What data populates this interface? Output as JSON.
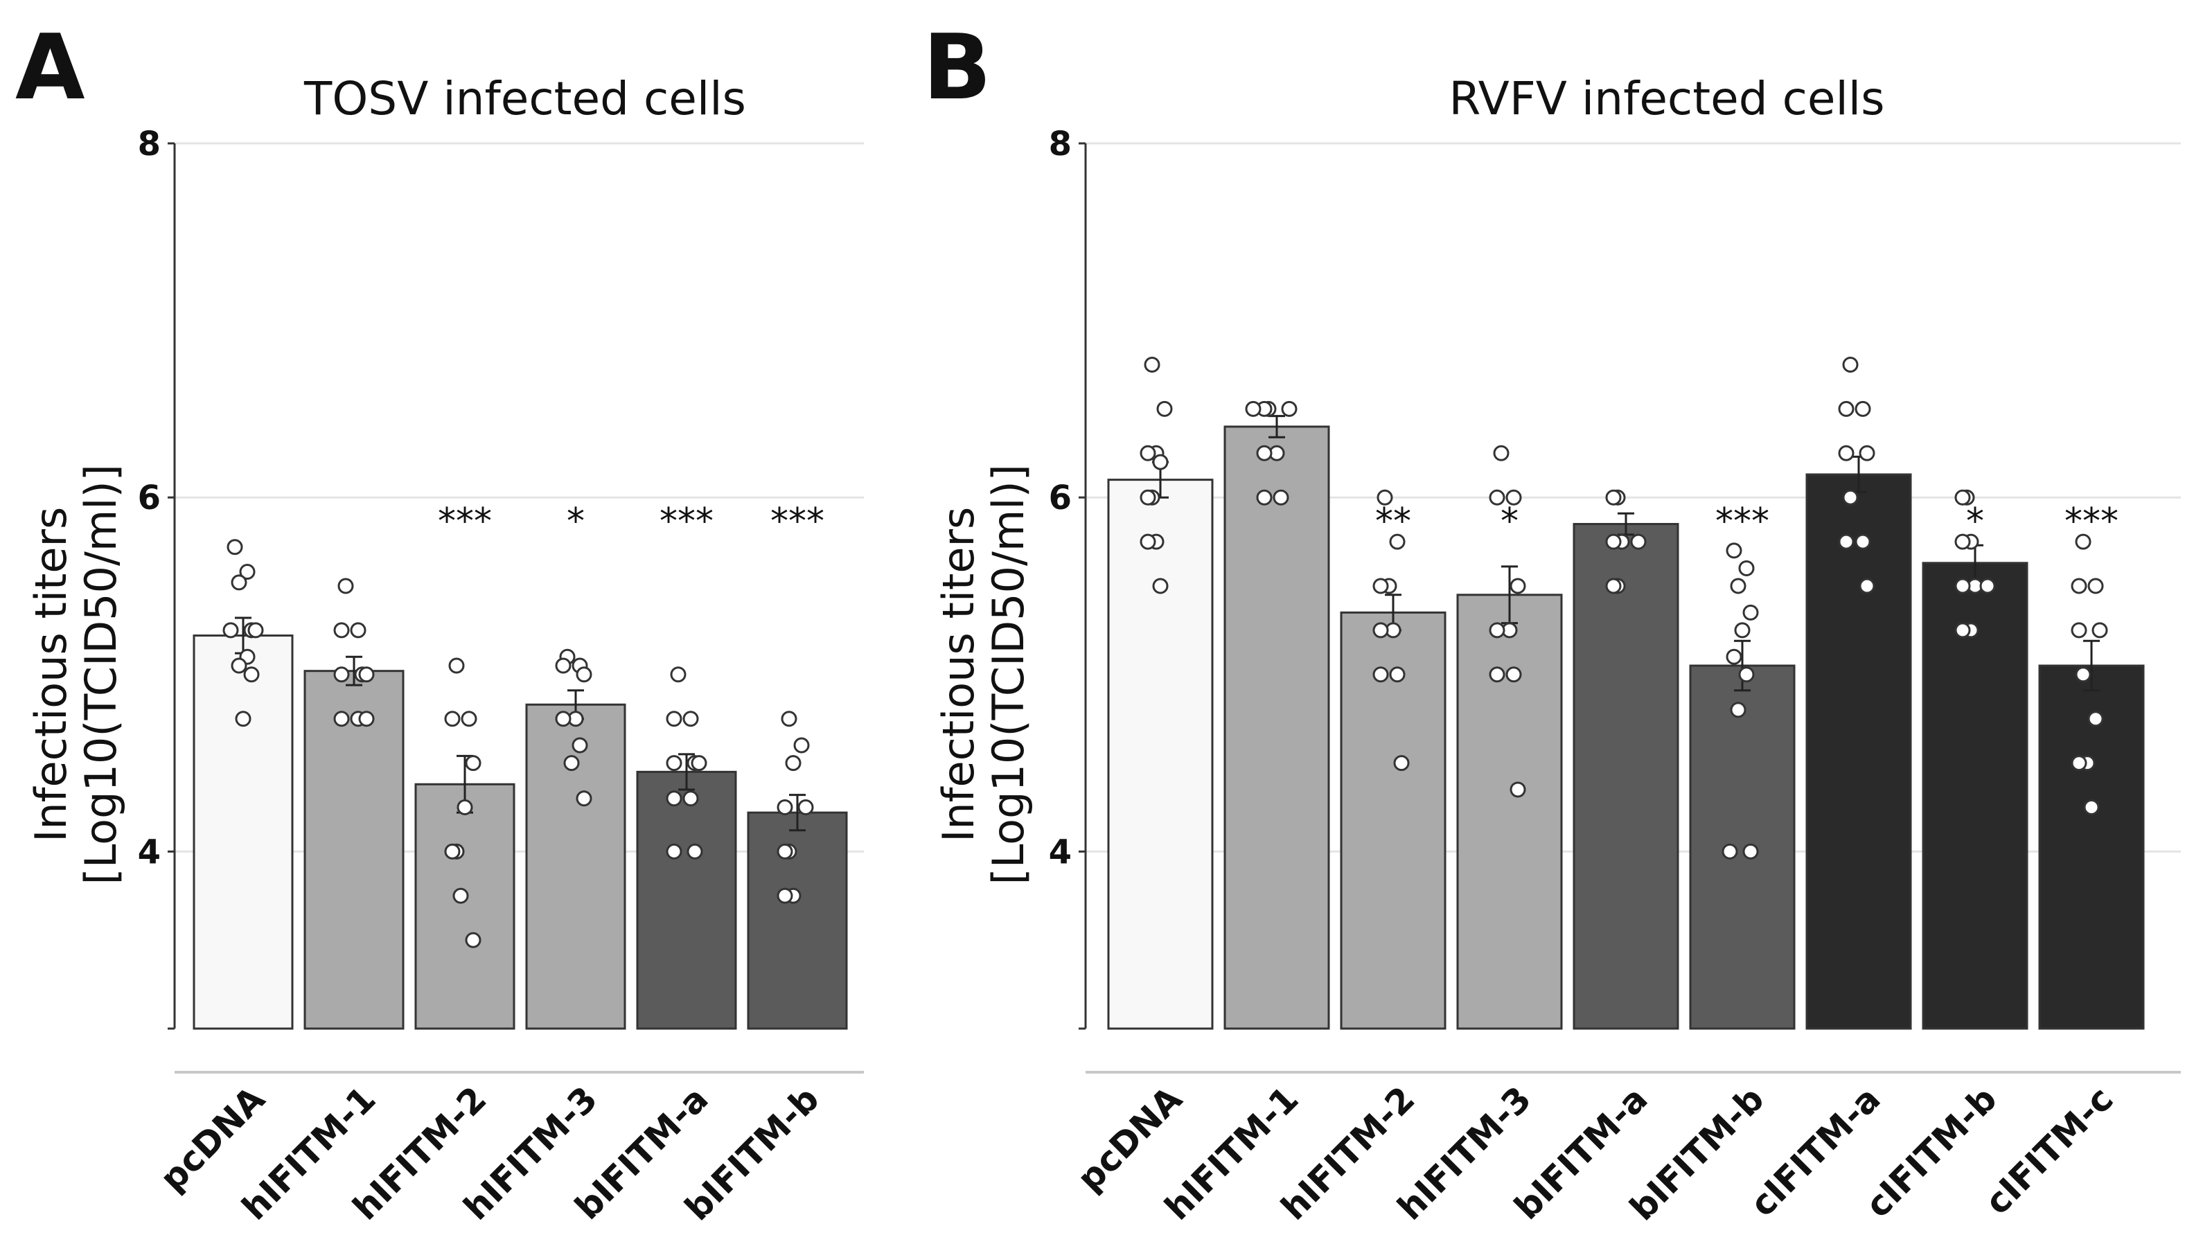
{
  "chart_data": [
    {
      "panel": "A",
      "type": "bar",
      "title": "TOSV infected cells",
      "ylabel_line1": "Infectious titers",
      "ylabel_line2": "[Log10(TCID50/ml)]",
      "ylim": [
        3,
        8
      ],
      "yticks": [
        4,
        6,
        8
      ],
      "grid": true,
      "categories": [
        "pcDNA",
        "hIFITM-1",
        "hIFITM-2",
        "hIFITM-3",
        "bIFITM-a",
        "bIFITM-b"
      ],
      "values": [
        5.22,
        5.02,
        4.38,
        4.83,
        4.45,
        4.22
      ],
      "errors": [
        0.1,
        0.08,
        0.16,
        0.08,
        0.1,
        0.1
      ],
      "colors": [
        "#f8f8f8",
        "#aaaaaa",
        "#aaaaaa",
        "#aaaaaa",
        "#5b5b5b",
        "#5b5b5b"
      ],
      "significance": [
        "",
        "",
        "***",
        "*",
        "***",
        "***"
      ],
      "points": [
        [
          5.72,
          5.58,
          5.52,
          5.25,
          5.25,
          5.25,
          5.1,
          5.05,
          5.0,
          4.75
        ],
        [
          5.5,
          5.25,
          5.25,
          5.0,
          5.0,
          5.0,
          4.75,
          4.75,
          4.75
        ],
        [
          5.05,
          4.75,
          4.75,
          4.5,
          4.25,
          4.0,
          4.0,
          3.75,
          3.5
        ],
        [
          5.1,
          5.05,
          5.05,
          5.0,
          4.75,
          4.75,
          4.6,
          4.5,
          4.3
        ],
        [
          5.0,
          4.75,
          4.75,
          4.5,
          4.5,
          4.5,
          4.3,
          4.3,
          4.0,
          4.0
        ],
        [
          4.75,
          4.6,
          4.5,
          4.25,
          4.25,
          4.0,
          4.0,
          3.75,
          3.75
        ]
      ]
    },
    {
      "panel": "B",
      "type": "bar",
      "title": "RVFV infected cells",
      "ylabel_line1": "Infectious titers",
      "ylabel_line2": "[Log10(TCID50/ml)]",
      "ylim": [
        3,
        8
      ],
      "yticks": [
        4,
        6,
        8
      ],
      "grid": true,
      "categories": [
        "pcDNA",
        "hIFITM-1",
        "hIFITM-2",
        "hIFITM-3",
        "bIFITM-a",
        "bIFITM-b",
        "cIFITM-a",
        "cIFITM-b",
        "cIFITM-c"
      ],
      "values": [
        6.1,
        6.4,
        5.35,
        5.45,
        5.85,
        5.05,
        6.13,
        5.63,
        5.05
      ],
      "errors": [
        0.1,
        0.06,
        0.1,
        0.16,
        0.06,
        0.14,
        0.1,
        0.1,
        0.14
      ],
      "colors": [
        "#f8f8f8",
        "#aaaaaa",
        "#aaaaaa",
        "#aaaaaa",
        "#5b5b5b",
        "#5b5b5b",
        "#2a2a2a",
        "#2a2a2a",
        "#2a2a2a"
      ],
      "significance": [
        "",
        "",
        "**",
        "*",
        "",
        "***",
        "",
        "*",
        "***"
      ],
      "points": [
        [
          6.75,
          6.5,
          6.25,
          6.25,
          6.2,
          6.0,
          6.0,
          5.75,
          5.75,
          5.5
        ],
        [
          6.5,
          6.5,
          6.5,
          6.5,
          6.25,
          6.25,
          6.0,
          6.0
        ],
        [
          6.0,
          5.75,
          5.5,
          5.5,
          5.25,
          5.25,
          5.0,
          5.0,
          4.5
        ],
        [
          6.25,
          6.0,
          6.0,
          5.5,
          5.25,
          5.25,
          5.0,
          5.0,
          4.35
        ],
        [
          6.0,
          6.0,
          5.75,
          5.75,
          5.75,
          5.5,
          5.5
        ],
        [
          5.7,
          5.6,
          5.5,
          5.35,
          5.25,
          5.1,
          5.0,
          4.8,
          4.0,
          4.0
        ],
        [
          6.75,
          6.5,
          6.5,
          6.25,
          6.25,
          6.0,
          5.75,
          5.75,
          5.5
        ],
        [
          6.0,
          6.0,
          5.75,
          5.75,
          5.5,
          5.5,
          5.5,
          5.25,
          5.25
        ],
        [
          5.75,
          5.5,
          5.5,
          5.25,
          5.25,
          5.0,
          4.75,
          4.5,
          4.5,
          4.25
        ]
      ]
    }
  ]
}
